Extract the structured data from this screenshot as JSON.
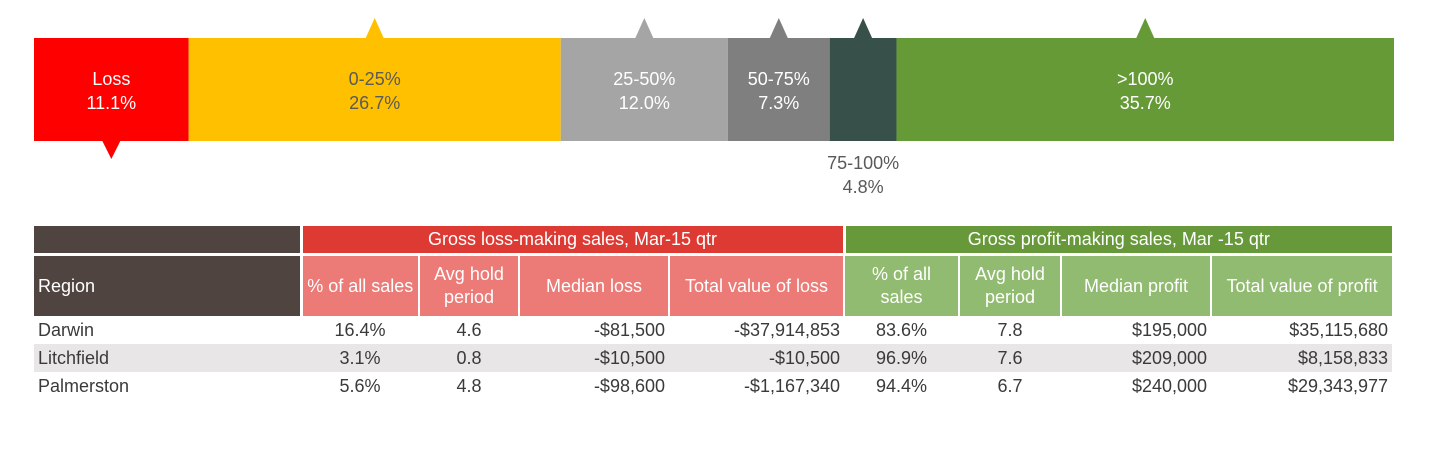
{
  "colors": {
    "loss": "#ff0000",
    "b0_25": "#ffc000",
    "b25_50": "#a5a5a5",
    "b50_75": "#7f7f7f",
    "b75_100": "#37514a",
    "b100plus": "#659a37",
    "header_dark": "#4f4440",
    "loss_header": "#de3a34",
    "loss_subheader": "#ec7a76",
    "profit_header": "#67993a",
    "profit_subheader": "#90bb70"
  },
  "chart_data": {
    "type": "bar",
    "orientation": "horizontal-stacked",
    "segments": [
      {
        "label": "Loss",
        "value": 11.1,
        "value_label": "11.1%",
        "color": "#ff0000",
        "text_color": "#ffffff",
        "label_position": "inside",
        "marker": "bottom"
      },
      {
        "label": "0-25%",
        "value": 26.7,
        "value_label": "26.7%",
        "color": "#ffc000",
        "text_color": "#5a5a5a",
        "label_position": "inside",
        "marker": "top"
      },
      {
        "label": "25-50%",
        "value": 12.0,
        "value_label": "12.0%",
        "color": "#a5a5a5",
        "text_color": "#ffffff",
        "label_position": "inside",
        "marker": "top"
      },
      {
        "label": "50-75%",
        "value": 7.3,
        "value_label": "7.3%",
        "color": "#7f7f7f",
        "text_color": "#ffffff",
        "label_position": "inside",
        "marker": "top"
      },
      {
        "label": "75-100%",
        "value": 4.8,
        "value_label": "4.8%",
        "color": "#37514a",
        "text_color": "#595959",
        "label_position": "below",
        "marker": "top"
      },
      {
        "label": ">100%",
        "value": 35.7,
        "value_label": "35.7%",
        "color": "#659a37",
        "text_color": "#ffffff",
        "label_position": "inside",
        "marker": "top"
      }
    ]
  },
  "table": {
    "group_headers": {
      "loss": "Gross loss-making sales, Mar-15 qtr",
      "profit": "Gross profit-making sales, Mar -15 qtr"
    },
    "columns": [
      "Region",
      "% of all sales",
      "Avg hold period",
      "Median loss",
      "Total value of loss",
      "% of all sales",
      "Avg hold period",
      "Median profit",
      "Total value of profit"
    ],
    "rows": [
      [
        "Darwin",
        "16.4%",
        "4.6",
        "-$81,500",
        "-$37,914,853",
        "83.6%",
        "7.8",
        "$195,000",
        "$35,115,680"
      ],
      [
        "Litchfield",
        "3.1%",
        "0.8",
        "-$10,500",
        "-$10,500",
        "96.9%",
        "7.6",
        "$209,000",
        "$8,158,833"
      ],
      [
        "Palmerston",
        "5.6%",
        "4.8",
        "-$98,600",
        "-$1,167,340",
        "94.4%",
        "6.7",
        "$240,000",
        "$29,343,977"
      ]
    ]
  }
}
